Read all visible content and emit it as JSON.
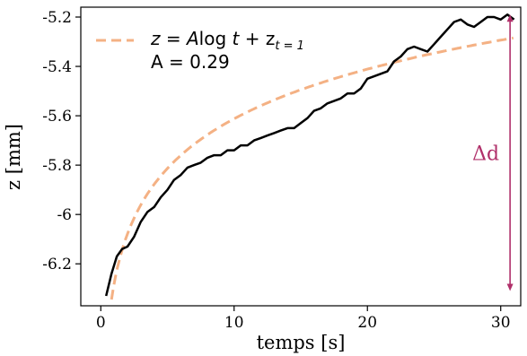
{
  "chart_data": {
    "type": "line",
    "xlabel": "temps [s]",
    "ylabel": "z [mm]",
    "xlim": [
      -1.5,
      31.5
    ],
    "ylim": [
      -6.37,
      -5.16
    ],
    "x_ticks": [
      0,
      10,
      20,
      30
    ],
    "x_tick_labels": [
      "0",
      "10",
      "20",
      "30"
    ],
    "y_ticks": [
      -6.2,
      -6.0,
      -5.8,
      -5.6,
      -5.4,
      -5.2
    ],
    "y_tick_labels": [
      "-6.2",
      "-6",
      "-5.8",
      "-5.6",
      "-5.4",
      "-5.2"
    ],
    "grid": false,
    "legend_position": "top-left",
    "series": [
      {
        "color": "#000000",
        "style": "solid",
        "x": [
          0.4,
          0.8,
          1.2,
          1.6,
          2.0,
          2.5,
          3.0,
          3.5,
          4.0,
          4.5,
          5.0,
          5.5,
          6.0,
          6.5,
          7.0,
          7.5,
          8.0,
          8.5,
          9.0,
          9.5,
          10.0,
          10.5,
          11.0,
          11.5,
          12.0,
          12.5,
          13.0,
          13.5,
          14.0,
          14.5,
          15.0,
          15.5,
          16.0,
          16.5,
          17.0,
          17.5,
          18.0,
          18.5,
          19.0,
          19.5,
          20.0,
          20.5,
          21.0,
          21.5,
          22.0,
          22.5,
          23.0,
          23.5,
          24.0,
          24.5,
          25.0,
          25.5,
          26.0,
          26.5,
          27.0,
          27.5,
          28.0,
          28.5,
          29.0,
          29.5,
          30.0,
          30.5,
          31.0
        ],
        "y": [
          -6.33,
          -6.24,
          -6.17,
          -6.14,
          -6.13,
          -6.09,
          -6.03,
          -5.99,
          -5.97,
          -5.93,
          -5.9,
          -5.86,
          -5.84,
          -5.81,
          -5.8,
          -5.79,
          -5.77,
          -5.76,
          -5.76,
          -5.74,
          -5.74,
          -5.72,
          -5.72,
          -5.7,
          -5.69,
          -5.68,
          -5.67,
          -5.66,
          -5.65,
          -5.65,
          -5.63,
          -5.61,
          -5.58,
          -5.57,
          -5.55,
          -5.54,
          -5.53,
          -5.51,
          -5.51,
          -5.49,
          -5.45,
          -5.44,
          -5.43,
          -5.42,
          -5.38,
          -5.36,
          -5.33,
          -5.32,
          -5.33,
          -5.34,
          -5.31,
          -5.28,
          -5.25,
          -5.22,
          -5.21,
          -5.23,
          -5.24,
          -5.22,
          -5.2,
          -5.2,
          -5.21,
          -5.19,
          -5.21
        ]
      },
      {
        "name": "z = A log t + z_{t=1}",
        "color": "#f4b184",
        "style": "dashed",
        "fit_formula": "z = 0.29 * log(t) - 6.28",
        "A": 0.29
      }
    ],
    "legend": {
      "formula_parts": [
        "z = ",
        "A",
        "log ",
        "t",
        " + z",
        "t = 1"
      ],
      "param_label": "A = 0.29"
    },
    "annotation": {
      "label": "Δd",
      "color": "#b0306a",
      "x": 30.7,
      "y_from": -6.31,
      "y_to": -5.19
    }
  }
}
